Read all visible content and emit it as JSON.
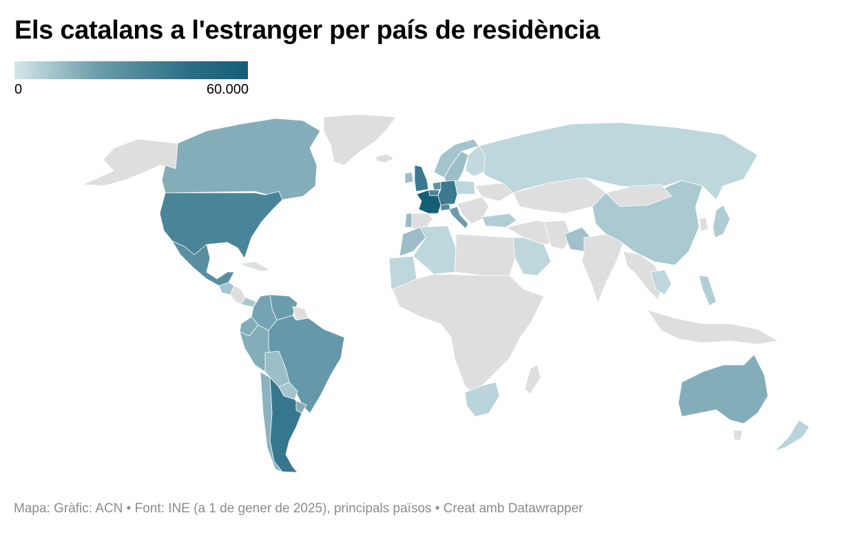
{
  "title": "Els catalans a l'estranger per país de residència",
  "legend": {
    "min_label": "0",
    "max_label": "60.000",
    "min_value": 0,
    "max_value": 60000,
    "color_low": "#d4e7ea",
    "color_high": "#155e78"
  },
  "footer": {
    "text": "Mapa: Gràfic: ACN • Font: INE (a 1 de gener de 2025), principals països • Creat amb Datawrapper"
  },
  "map_colors": {
    "no_data": "#dedede",
    "ocean": "#ffffff"
  },
  "countries": [
    {
      "id": "france",
      "level": 1.0
    },
    {
      "id": "argentina",
      "level": 0.82
    },
    {
      "id": "germany",
      "level": 0.8
    },
    {
      "id": "united-kingdom",
      "level": 0.8
    },
    {
      "id": "united-states",
      "level": 0.72
    },
    {
      "id": "mexico",
      "level": 0.65
    },
    {
      "id": "brazil",
      "level": 0.58
    },
    {
      "id": "venezuela",
      "level": 0.55
    },
    {
      "id": "colombia",
      "level": 0.5
    },
    {
      "id": "belgium",
      "level": 0.72
    },
    {
      "id": "switzerland",
      "level": 0.68
    },
    {
      "id": "netherlands",
      "level": 0.62
    },
    {
      "id": "italy",
      "level": 0.55
    },
    {
      "id": "canada",
      "level": 0.42
    },
    {
      "id": "australia",
      "level": 0.42
    },
    {
      "id": "chile",
      "level": 0.38
    },
    {
      "id": "peru",
      "level": 0.42
    },
    {
      "id": "uruguay",
      "level": 0.42
    },
    {
      "id": "bolivia",
      "level": 0.3
    },
    {
      "id": "paraguay",
      "level": 0.25
    },
    {
      "id": "ecuador",
      "level": 0.42
    },
    {
      "id": "portugal",
      "level": 0.32
    },
    {
      "id": "morocco",
      "level": 0.3
    },
    {
      "id": "sweden",
      "level": 0.3
    },
    {
      "id": "norway",
      "level": 0.25
    },
    {
      "id": "ireland",
      "level": 0.3
    },
    {
      "id": "china",
      "level": 0.22
    },
    {
      "id": "japan",
      "level": 0.2
    },
    {
      "id": "pakistan",
      "level": 0.28
    },
    {
      "id": "russia",
      "level": 0.12
    },
    {
      "id": "algeria",
      "level": 0.12
    },
    {
      "id": "south-africa",
      "level": 0.14
    },
    {
      "id": "new-zealand",
      "level": 0.14
    },
    {
      "id": "saudi-arabia",
      "level": 0.12
    },
    {
      "id": "mauritania",
      "level": 0.12
    },
    {
      "id": "turkey",
      "level": 0.18
    },
    {
      "id": "philippines",
      "level": 0.18
    },
    {
      "id": "thailand",
      "level": 0.12
    },
    {
      "id": "poland",
      "level": 0.12
    },
    {
      "id": "finland",
      "level": 0.1
    },
    {
      "id": "panama",
      "level": 0.22
    },
    {
      "id": "guatemala",
      "level": 0.25
    }
  ]
}
